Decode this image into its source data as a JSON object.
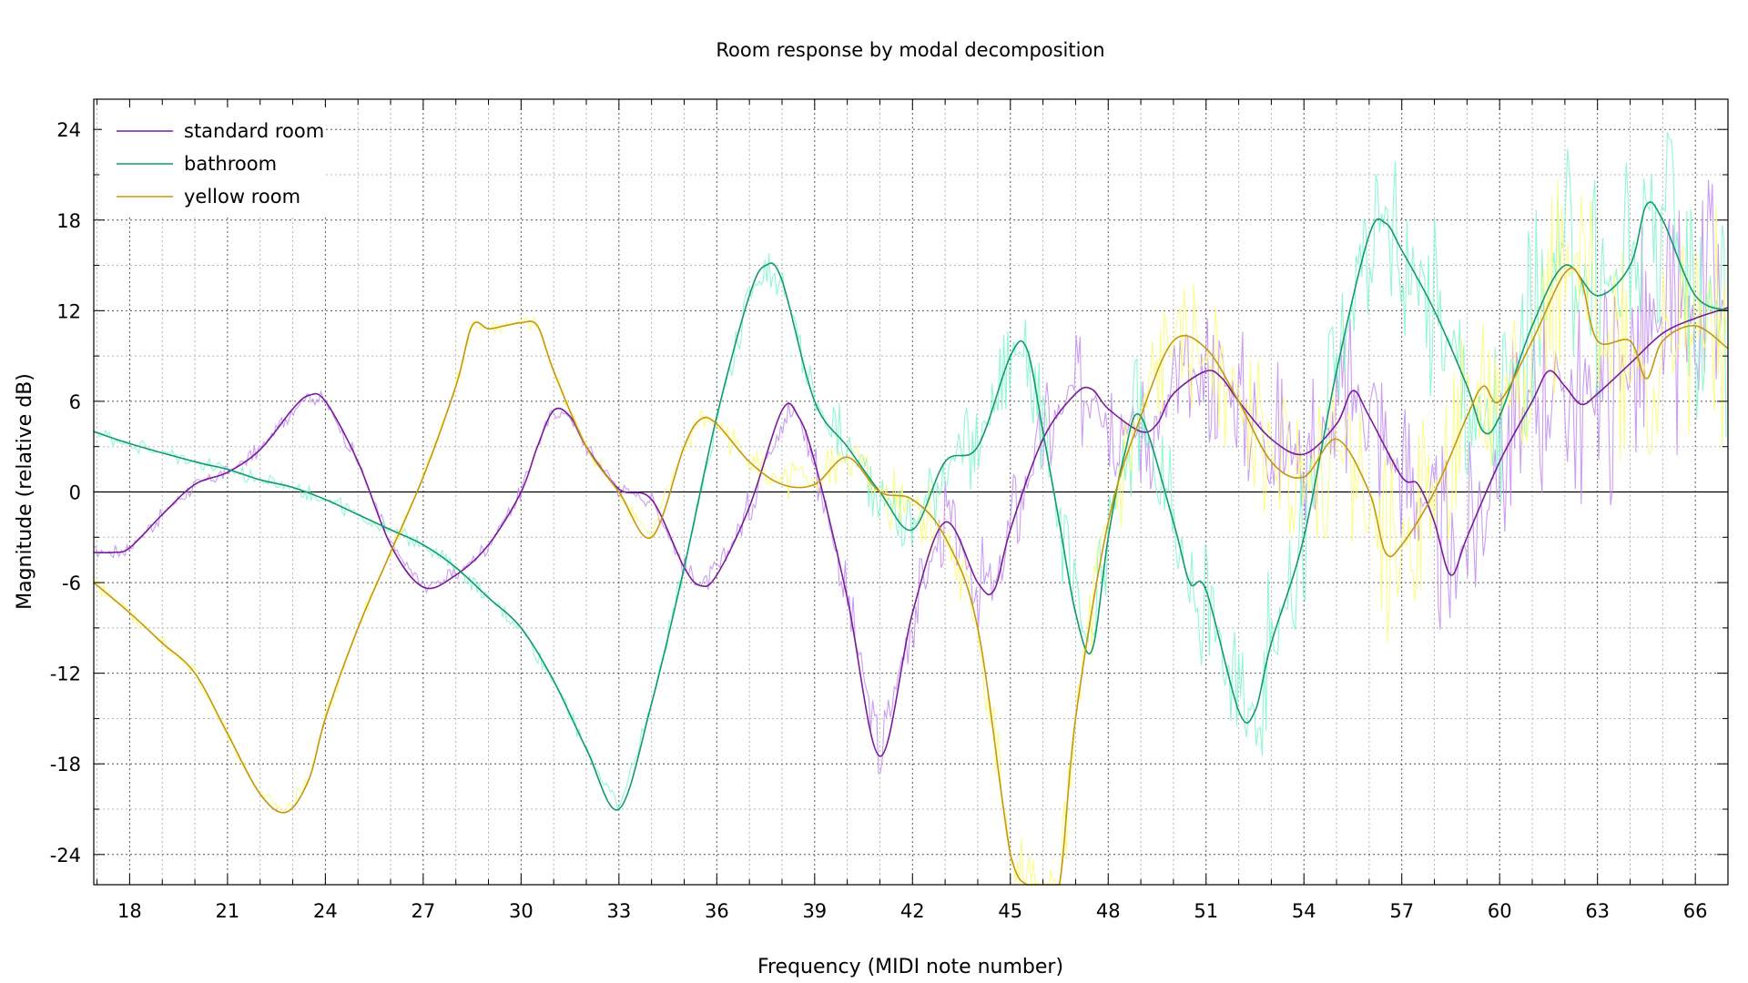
{
  "chart_data": {
    "type": "line",
    "title": "Room response by modal decomposition",
    "xlabel": "Frequency (MIDI note number)",
    "ylabel": "Magnitude (relative dB)",
    "xlim": [
      16.9,
      67
    ],
    "ylim": [
      -26,
      26
    ],
    "xticks": [
      18,
      21,
      24,
      27,
      30,
      33,
      36,
      39,
      42,
      45,
      48,
      51,
      54,
      57,
      60,
      63,
      66
    ],
    "yticks": [
      24,
      18,
      12,
      6,
      0,
      -6,
      -12,
      -18,
      -24
    ],
    "grid": true,
    "legend_position": "top-left",
    "series": [
      {
        "name": "standard room",
        "color": "#7a1c9a",
        "raw_color": "#c38cf2",
        "points": [
          [
            16.9,
            -4
          ],
          [
            17.5,
            -4
          ],
          [
            18,
            -3.7
          ],
          [
            19,
            -1.5
          ],
          [
            20,
            0.5
          ],
          [
            21,
            1.3
          ],
          [
            22,
            2.8
          ],
          [
            23,
            5.5
          ],
          [
            23.5,
            6.4
          ],
          [
            24,
            6
          ],
          [
            25,
            2
          ],
          [
            26,
            -3.5
          ],
          [
            27,
            -6.3
          ],
          [
            28,
            -5.5
          ],
          [
            29,
            -3.5
          ],
          [
            30,
            0
          ],
          [
            30.5,
            3
          ],
          [
            31,
            5.4
          ],
          [
            31.5,
            5
          ],
          [
            32,
            3
          ],
          [
            33,
            0.2
          ],
          [
            34,
            -0.5
          ],
          [
            35,
            -5
          ],
          [
            35.5,
            -6.2
          ],
          [
            36,
            -5.5
          ],
          [
            37,
            -1
          ],
          [
            38,
            5.4
          ],
          [
            38.5,
            5
          ],
          [
            39,
            2
          ],
          [
            40,
            -7
          ],
          [
            41,
            -17.5
          ],
          [
            42,
            -8
          ],
          [
            43,
            -2
          ],
          [
            44,
            -6
          ],
          [
            44.5,
            -6.5
          ],
          [
            45,
            -2.5
          ],
          [
            46,
            3.5
          ],
          [
            47,
            6.5
          ],
          [
            47.5,
            6.8
          ],
          [
            48,
            5.5
          ],
          [
            49,
            4
          ],
          [
            49.5,
            4.5
          ],
          [
            50,
            6.5
          ],
          [
            51,
            8
          ],
          [
            51.5,
            7.5
          ],
          [
            52,
            6
          ],
          [
            53,
            3.5
          ],
          [
            54,
            2.5
          ],
          [
            55,
            4.5
          ],
          [
            55.5,
            6.7
          ],
          [
            56,
            5
          ],
          [
            57,
            1
          ],
          [
            57.5,
            0.5
          ],
          [
            58,
            -2
          ],
          [
            58.5,
            -5.5
          ],
          [
            59,
            -3
          ],
          [
            60,
            2
          ],
          [
            61,
            6
          ],
          [
            61.5,
            8
          ],
          [
            62,
            7
          ],
          [
            62.5,
            5.8
          ],
          [
            63,
            6.5
          ],
          [
            64,
            8.5
          ],
          [
            65,
            10.5
          ],
          [
            66,
            11.5
          ],
          [
            67,
            12.2
          ]
        ]
      },
      {
        "name": "bathroom",
        "color": "#109a70",
        "raw_color": "#7ff7c8",
        "points": [
          [
            16.9,
            4
          ],
          [
            18,
            3.2
          ],
          [
            20,
            2
          ],
          [
            21,
            1.5
          ],
          [
            22,
            0.8
          ],
          [
            23,
            0.3
          ],
          [
            24,
            -0.5
          ],
          [
            25,
            -1.5
          ],
          [
            26,
            -2.5
          ],
          [
            27,
            -3.5
          ],
          [
            28,
            -5
          ],
          [
            29,
            -7
          ],
          [
            30,
            -9
          ],
          [
            31,
            -12.5
          ],
          [
            32,
            -17
          ],
          [
            33,
            -21
          ],
          [
            34,
            -14
          ],
          [
            35,
            -5
          ],
          [
            36,
            5
          ],
          [
            37,
            13
          ],
          [
            37.5,
            15
          ],
          [
            38,
            14
          ],
          [
            39,
            6
          ],
          [
            40,
            3
          ],
          [
            41,
            0
          ],
          [
            42,
            -2.5
          ],
          [
            43,
            2
          ],
          [
            44,
            3
          ],
          [
            45,
            9
          ],
          [
            45.5,
            9.5
          ],
          [
            46,
            4
          ],
          [
            46.5,
            -2
          ],
          [
            47,
            -8
          ],
          [
            47.5,
            -10.5
          ],
          [
            48,
            -3
          ],
          [
            48.5,
            2.5
          ],
          [
            49,
            5
          ],
          [
            50,
            -2
          ],
          [
            50.5,
            -6
          ],
          [
            51,
            -6.5
          ],
          [
            52,
            -14.5
          ],
          [
            52.5,
            -14.5
          ],
          [
            53,
            -10
          ],
          [
            54,
            -3
          ],
          [
            55,
            8
          ],
          [
            56,
            17
          ],
          [
            56.5,
            17.8
          ],
          [
            57,
            16
          ],
          [
            58,
            12
          ],
          [
            59,
            7
          ],
          [
            59.5,
            4
          ],
          [
            60,
            5
          ],
          [
            61,
            11
          ],
          [
            62,
            15
          ],
          [
            63,
            13
          ],
          [
            64,
            15
          ],
          [
            64.5,
            19
          ],
          [
            65,
            18
          ],
          [
            66,
            13
          ],
          [
            67,
            12
          ]
        ]
      },
      {
        "name": "yellow room",
        "color": "#c8960a",
        "raw_color": "#fbfb78",
        "points": [
          [
            16.9,
            -6
          ],
          [
            18,
            -8
          ],
          [
            19,
            -10
          ],
          [
            20,
            -12
          ],
          [
            21,
            -16
          ],
          [
            22,
            -20
          ],
          [
            22.8,
            -21.2
          ],
          [
            23.5,
            -19
          ],
          [
            24,
            -15
          ],
          [
            25,
            -9
          ],
          [
            26,
            -4
          ],
          [
            27,
            1
          ],
          [
            28,
            7
          ],
          [
            28.5,
            11
          ],
          [
            29,
            10.8
          ],
          [
            29.5,
            11
          ],
          [
            30,
            11.2
          ],
          [
            30.5,
            11
          ],
          [
            31,
            8
          ],
          [
            32,
            3
          ],
          [
            33,
            0
          ],
          [
            34,
            -3
          ],
          [
            35,
            3
          ],
          [
            35.5,
            4.8
          ],
          [
            36,
            4.5
          ],
          [
            37,
            2
          ],
          [
            38,
            0.5
          ],
          [
            39,
            0.5
          ],
          [
            40,
            2.3
          ],
          [
            41,
            0
          ],
          [
            42,
            -0.5
          ],
          [
            43,
            -3
          ],
          [
            44,
            -9
          ],
          [
            45,
            -24
          ],
          [
            45.5,
            -27
          ],
          [
            46,
            -27
          ],
          [
            46.5,
            -27
          ],
          [
            47,
            -15
          ],
          [
            48,
            -2
          ],
          [
            49,
            5
          ],
          [
            50,
            10
          ],
          [
            51,
            9.5
          ],
          [
            52,
            6
          ],
          [
            53,
            2
          ],
          [
            54,
            1
          ],
          [
            55,
            3.5
          ],
          [
            56,
            0
          ],
          [
            56.5,
            -4
          ],
          [
            57,
            -3.5
          ],
          [
            58,
            0
          ],
          [
            59,
            5
          ],
          [
            59.5,
            7
          ],
          [
            60,
            6
          ],
          [
            61,
            10
          ],
          [
            62,
            14.5
          ],
          [
            62.5,
            14
          ],
          [
            63,
            10
          ],
          [
            64,
            10
          ],
          [
            64.5,
            7.5
          ],
          [
            65,
            10
          ],
          [
            66,
            11
          ],
          [
            67,
            9.5
          ]
        ]
      }
    ]
  }
}
